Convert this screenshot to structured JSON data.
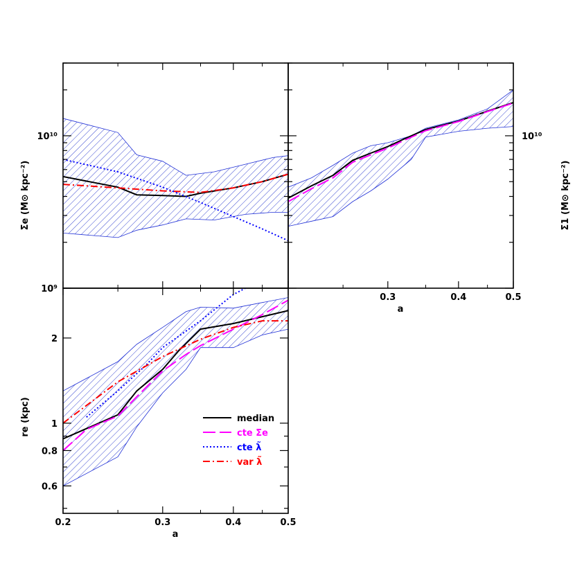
{
  "colors": {
    "median": "#000000",
    "cte_sigma": "#ff00ff",
    "cte_lambda": "#0000ff",
    "var_lambda": "#ff0000",
    "band": "#1f2fd6"
  },
  "panels": {
    "top_left": {
      "ylabel": "Σe (M⊙ kpc⁻²)",
      "ytick_labels": [
        "10¹⁰",
        "10⁹"
      ]
    },
    "top_right": {
      "ylabel": "Σ1 (M⊙ kpc⁻²)",
      "ytick_labels": [
        "10¹⁰"
      ],
      "xlabel": "a",
      "xtick_labels": [
        "0.3",
        "0.4",
        "0.5"
      ]
    },
    "bottom_left": {
      "ylabel": "re (kpc)",
      "ytick_labels": [
        "2",
        "1",
        "0.8",
        "0.6"
      ],
      "xlabel": "a",
      "xtick_labels": [
        "0.2",
        "0.3",
        "0.4",
        "0.5"
      ]
    }
  },
  "legend": {
    "median": "median",
    "cte_sigma": "cte Σe",
    "cte_lambda": "cte λ̃",
    "var_lambda": "var λ̃"
  },
  "chart_data": [
    {
      "type": "line",
      "panel": "top_left",
      "xlabel": "",
      "ylabel": "Σe (M⊙ kpc⁻²)",
      "xlim": [
        0.2,
        0.5
      ],
      "ylim": [
        1000000000.0,
        30000000000.0
      ],
      "yscale": "log",
      "xscale": "log",
      "band": {
        "x": [
          0.2,
          0.25,
          0.27,
          0.3,
          0.33,
          0.37,
          0.42,
          0.47,
          0.5
        ],
        "upper": [
          13000000000.0,
          10500000000.0,
          7500000000.0,
          6800000000.0,
          5500000000.0,
          5800000000.0,
          6500000000.0,
          7200000000.0,
          7400000000.0
        ],
        "lower": [
          2300000000.0,
          2150000000.0,
          2400000000.0,
          2600000000.0,
          2850000000.0,
          2800000000.0,
          3050000000.0,
          3150000000.0,
          3150000000.0
        ]
      },
      "series": [
        {
          "name": "median",
          "x": [
            0.2,
            0.25,
            0.27,
            0.3,
            0.33,
            0.35,
            0.4,
            0.45,
            0.5
          ],
          "y": [
            5400000000.0,
            4600000000.0,
            4100000000.0,
            4050000000.0,
            4000000000.0,
            4200000000.0,
            4550000000.0,
            5000000000.0,
            5600000000.0
          ]
        },
        {
          "name": "var λ̃",
          "x": [
            0.2,
            0.25,
            0.3,
            0.35,
            0.4,
            0.45,
            0.5
          ],
          "y": [
            4800000000.0,
            4550000000.0,
            4350000000.0,
            4250000000.0,
            4550000000.0,
            5000000000.0,
            5600000000.0
          ]
        },
        {
          "name": "cte λ̃",
          "x": [
            0.2,
            0.25,
            0.3,
            0.35,
            0.4,
            0.45,
            0.5
          ],
          "y": [
            7000000000.0,
            5800000000.0,
            4600000000.0,
            3650000000.0,
            2950000000.0,
            2450000000.0,
            2050000000.0
          ]
        }
      ]
    },
    {
      "type": "line",
      "panel": "top_right",
      "xlabel": "a",
      "ylabel": "Σ1 (M⊙ kpc⁻²)",
      "xlim": [
        0.2,
        0.5
      ],
      "ylim": [
        1000000000.0,
        30000000000.0
      ],
      "yscale": "log",
      "xscale": "log",
      "band": {
        "x": [
          0.2,
          0.22,
          0.24,
          0.26,
          0.28,
          0.3,
          0.33,
          0.35,
          0.4,
          0.45,
          0.5
        ],
        "upper": [
          4600000000.0,
          5300000000.0,
          6400000000.0,
          7700000000.0,
          8600000000.0,
          9000000000.0,
          10000000000.0,
          11200000000.0,
          12700000000.0,
          15000000000.0,
          20000000000.0
        ],
        "lower": [
          2550000000.0,
          2750000000.0,
          2950000000.0,
          3700000000.0,
          4350000000.0,
          5200000000.0,
          7000000000.0,
          9800000000.0,
          10700000000.0,
          11200000000.0,
          11500000000.0
        ]
      },
      "series": [
        {
          "name": "median",
          "x": [
            0.2,
            0.22,
            0.24,
            0.26,
            0.28,
            0.3,
            0.32,
            0.35,
            0.4,
            0.45,
            0.5
          ],
          "y": [
            3900000000.0,
            4700000000.0,
            5500000000.0,
            6900000000.0,
            7700000000.0,
            8500000000.0,
            9500000000.0,
            11000000000.0,
            12500000000.0,
            14500000000.0,
            16500000000.0
          ]
        },
        {
          "name": "cte Σe",
          "x": [
            0.2,
            0.22,
            0.24,
            0.26,
            0.28,
            0.3,
            0.32,
            0.35,
            0.4,
            0.45,
            0.5
          ],
          "y": [
            3700000000.0,
            4500000000.0,
            5300000000.0,
            6700000000.0,
            7500000000.0,
            8300000000.0,
            9300000000.0,
            10800000000.0,
            12400000000.0,
            14400000000.0,
            16400000000.0
          ]
        }
      ]
    },
    {
      "type": "line",
      "panel": "bottom_left",
      "xlabel": "a",
      "ylabel": "re (kpc)",
      "xlim": [
        0.2,
        0.5
      ],
      "ylim": [
        0.48,
        3.0
      ],
      "yscale": "log",
      "xscale": "log",
      "band": {
        "x": [
          0.2,
          0.25,
          0.27,
          0.3,
          0.33,
          0.35,
          0.4,
          0.45,
          0.5
        ],
        "upper": [
          1.3,
          1.65,
          1.9,
          2.18,
          2.48,
          2.57,
          2.55,
          2.67,
          2.78
        ],
        "lower": [
          0.6,
          0.76,
          0.97,
          1.28,
          1.55,
          1.85,
          1.85,
          2.05,
          2.15
        ]
      },
      "series": [
        {
          "name": "median",
          "x": [
            0.2,
            0.25,
            0.27,
            0.3,
            0.32,
            0.35,
            0.4,
            0.45,
            0.5
          ],
          "y": [
            0.88,
            1.07,
            1.3,
            1.55,
            1.8,
            2.15,
            2.25,
            2.38,
            2.5
          ]
        },
        {
          "name": "cte Σe",
          "x": [
            0.2,
            0.22,
            0.25,
            0.27,
            0.3,
            0.33,
            0.35,
            0.4,
            0.45,
            0.5
          ],
          "y": [
            0.8,
            0.95,
            1.06,
            1.24,
            1.53,
            1.75,
            1.88,
            2.15,
            2.42,
            2.72
          ]
        },
        {
          "name": "cte λ̃",
          "x": [
            0.22,
            0.25,
            0.28,
            0.3,
            0.35,
            0.4,
            0.42
          ],
          "y": [
            1.05,
            1.3,
            1.6,
            1.85,
            2.3,
            2.85,
            3.0
          ]
        },
        {
          "name": "var λ̃",
          "x": [
            0.2,
            0.25,
            0.3,
            0.35,
            0.4,
            0.45,
            0.5
          ],
          "y": [
            1.0,
            1.4,
            1.72,
            1.98,
            2.18,
            2.3,
            2.3
          ]
        }
      ]
    }
  ]
}
